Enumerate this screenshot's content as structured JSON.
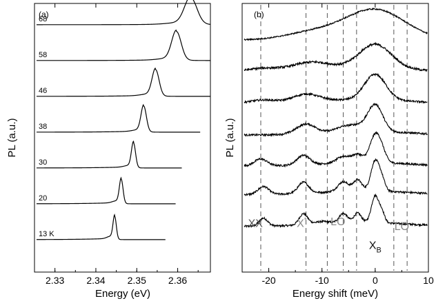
{
  "chart_data": [
    {
      "type": "line",
      "panel_label": "(a)",
      "xlabel": "Energy (eV)",
      "ylabel": "PL (a.u.)",
      "xlim": [
        2.325,
        2.368
      ],
      "xticks": [
        "2.33",
        "2.34",
        "2.35",
        "2.36"
      ],
      "xtick_values": [
        2.33,
        2.34,
        2.35,
        2.36
      ],
      "series": [
        {
          "name": "13 K",
          "baseline": 0.33,
          "peak_x": 2.3446,
          "peak_height": 0.62,
          "width": 0.0004,
          "shoulder_x": 2.3436,
          "shoulder_height": 0.06,
          "x_end": 2.357
        },
        {
          "name": "20",
          "baseline": 1.33,
          "peak_x": 2.3462,
          "peak_height": 0.66,
          "width": 0.00045,
          "shoulder_x": 2.345,
          "shoulder_height": 0.05,
          "x_end": 2.3595
        },
        {
          "name": "30",
          "baseline": 2.33,
          "peak_x": 2.3492,
          "peak_height": 0.68,
          "width": 0.0005,
          "shoulder_x": 2.348,
          "shoulder_height": 0.04,
          "x_end": 2.361
        },
        {
          "name": "38",
          "baseline": 3.33,
          "peak_x": 2.3517,
          "peak_height": 0.7,
          "width": 0.00065,
          "shoulder_x": 2.3505,
          "shoulder_height": 0.04,
          "x_end": 2.3655
        },
        {
          "name": "46",
          "baseline": 4.33,
          "peak_x": 2.3546,
          "peak_height": 0.72,
          "width": 0.00085,
          "shoulder_x": 2.353,
          "shoulder_height": 0.04,
          "x_end": 2.368
        },
        {
          "name": "58",
          "baseline": 5.33,
          "peak_x": 2.3597,
          "peak_height": 0.78,
          "width": 0.00115,
          "shoulder_x": 2.358,
          "shoulder_height": 0.04,
          "x_end": 2.368
        },
        {
          "name": "68",
          "baseline": 6.33,
          "peak_x": 2.3632,
          "peak_height": 0.72,
          "width": 0.0015,
          "shoulder_x": 2.361,
          "shoulder_height": 0.04,
          "x_end": 2.368
        }
      ]
    },
    {
      "type": "line",
      "panel_label": "(b)",
      "xlabel": "Energy shift (meV)",
      "ylabel": "PL (a.u.)",
      "xlim": [
        -25,
        10
      ],
      "xticks": [
        "-20",
        "-10",
        "0",
        "10"
      ],
      "xtick_values": [
        -20,
        -10,
        0,
        10
      ],
      "dashed_lines_x": [
        -21.5,
        -13,
        -9,
        -6,
        -3.5,
        3.5,
        6
      ],
      "annotations": [
        {
          "text": "XX",
          "x": -22.5,
          "y_level": 0.6,
          "color": "#555555"
        },
        {
          "text": "X",
          "sup": "*",
          "x": -13.8,
          "y_level": 0.6,
          "color": "#888888"
        },
        {
          "text": "LO",
          "x": -7.0,
          "y_level": 0.65,
          "color": "#888888"
        },
        {
          "text": "LO",
          "x": 5.0,
          "y_level": 0.5,
          "color": "#888888"
        },
        {
          "text": "X",
          "sub": "B",
          "x": 0.0,
          "y_level": -0.1,
          "color": "#111111"
        }
      ],
      "series": [
        {
          "name": "13 K",
          "baseline": 0.4,
          "peaks": [
            [
              0,
              0.85,
              0.7
            ],
            [
              1.3,
              0.3,
              0.5
            ],
            [
              -21,
              0.25,
              0.8
            ],
            [
              -13.5,
              0.35,
              0.8
            ],
            [
              -6,
              0.3,
              0.8
            ],
            [
              -3.3,
              0.3,
              0.7
            ],
            [
              -10,
              0.08,
              1.5
            ]
          ],
          "noise": 0.03
        },
        {
          "name": "20",
          "baseline": 1.4,
          "peaks": [
            [
              0,
              0.95,
              0.8
            ],
            [
              1.3,
              0.3,
              0.6
            ],
            [
              -21,
              0.25,
              1.0
            ],
            [
              -13.5,
              0.35,
              1.0
            ],
            [
              -6,
              0.3,
              1.0
            ],
            [
              -3.3,
              0.35,
              0.8
            ]
          ],
          "noise": 0.03
        },
        {
          "name": "30",
          "baseline": 2.3,
          "peaks": [
            [
              0,
              0.85,
              1.0
            ],
            [
              1.3,
              0.25,
              0.8
            ],
            [
              -21.5,
              0.22,
              1.2
            ],
            [
              -13.5,
              0.3,
              1.2
            ],
            [
              -6,
              0.2,
              1.2
            ],
            [
              -3.3,
              0.25,
              1.0
            ]
          ],
          "noise": 0.03
        },
        {
          "name": "38",
          "baseline": 3.28,
          "peaks": [
            [
              0,
              0.85,
              1.4
            ],
            [
              -13,
              0.3,
              1.8
            ],
            [
              -6,
              0.15,
              1.6
            ],
            [
              -3.3,
              0.15,
              1.4
            ]
          ],
          "noise": 0.03
        },
        {
          "name": "46",
          "baseline": 4.28,
          "peaks": [
            [
              0,
              0.8,
              2.0
            ],
            [
              -13,
              0.25,
              2.5
            ],
            [
              -21,
              0.1,
              2.5
            ]
          ],
          "noise": 0.03
        },
        {
          "name": "58",
          "baseline": 5.28,
          "peaks": [
            [
              0,
              0.75,
              3.0
            ],
            [
              -12,
              0.25,
              3.5
            ],
            [
              -21,
              0.1,
              3.0
            ]
          ],
          "noise": 0.035
        },
        {
          "name": "68",
          "baseline": 6.28,
          "peaks": [
            [
              0,
              0.85,
              5.5
            ],
            [
              -12,
              0.2,
              5.0
            ]
          ],
          "noise": 0.02
        }
      ]
    }
  ]
}
